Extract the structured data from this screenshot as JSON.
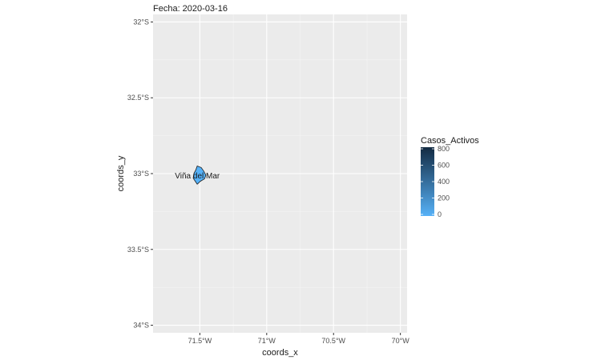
{
  "chart_data": {
    "type": "map",
    "subtitle": "Fecha: 2020-03-16",
    "xlabel": "coords_x",
    "ylabel": "coords_y",
    "xlim": [
      -71.85,
      -69.95
    ],
    "ylim": [
      -34.05,
      -31.95
    ],
    "x_ticks": [
      {
        "value": -71.5,
        "label": "71.5°W"
      },
      {
        "value": -71.0,
        "label": "71°W"
      },
      {
        "value": -70.5,
        "label": "70.5°W"
      },
      {
        "value": -70.0,
        "label": "70°W"
      }
    ],
    "y_ticks": [
      {
        "value": -32.0,
        "label": "32°S"
      },
      {
        "value": -32.5,
        "label": "32.5°S"
      },
      {
        "value": -33.0,
        "label": "33°S"
      },
      {
        "value": -33.5,
        "label": "33.5°S"
      },
      {
        "value": -34.0,
        "label": "34°S"
      }
    ],
    "grid": true,
    "legend": {
      "title": "Casos_Activos",
      "position": "right",
      "range": [
        0,
        800
      ],
      "ticks": [
        0,
        200,
        400,
        600,
        800
      ],
      "low_color": "#56B1F7",
      "high_color": "#132B43"
    },
    "regions": [
      {
        "name": "Viña del Mar",
        "casos_activos": 0,
        "fill": "#56B1F7",
        "polygon": [
          [
            -71.52,
            -32.95
          ],
          [
            -71.49,
            -32.96
          ],
          [
            -71.47,
            -32.985
          ],
          [
            -71.455,
            -33.01
          ],
          [
            -71.465,
            -33.035
          ],
          [
            -71.495,
            -33.05
          ],
          [
            -71.52,
            -33.07
          ],
          [
            -71.535,
            -33.05
          ],
          [
            -71.55,
            -33.03
          ],
          [
            -71.545,
            -33.0
          ],
          [
            -71.53,
            -32.975
          ]
        ]
      }
    ]
  }
}
